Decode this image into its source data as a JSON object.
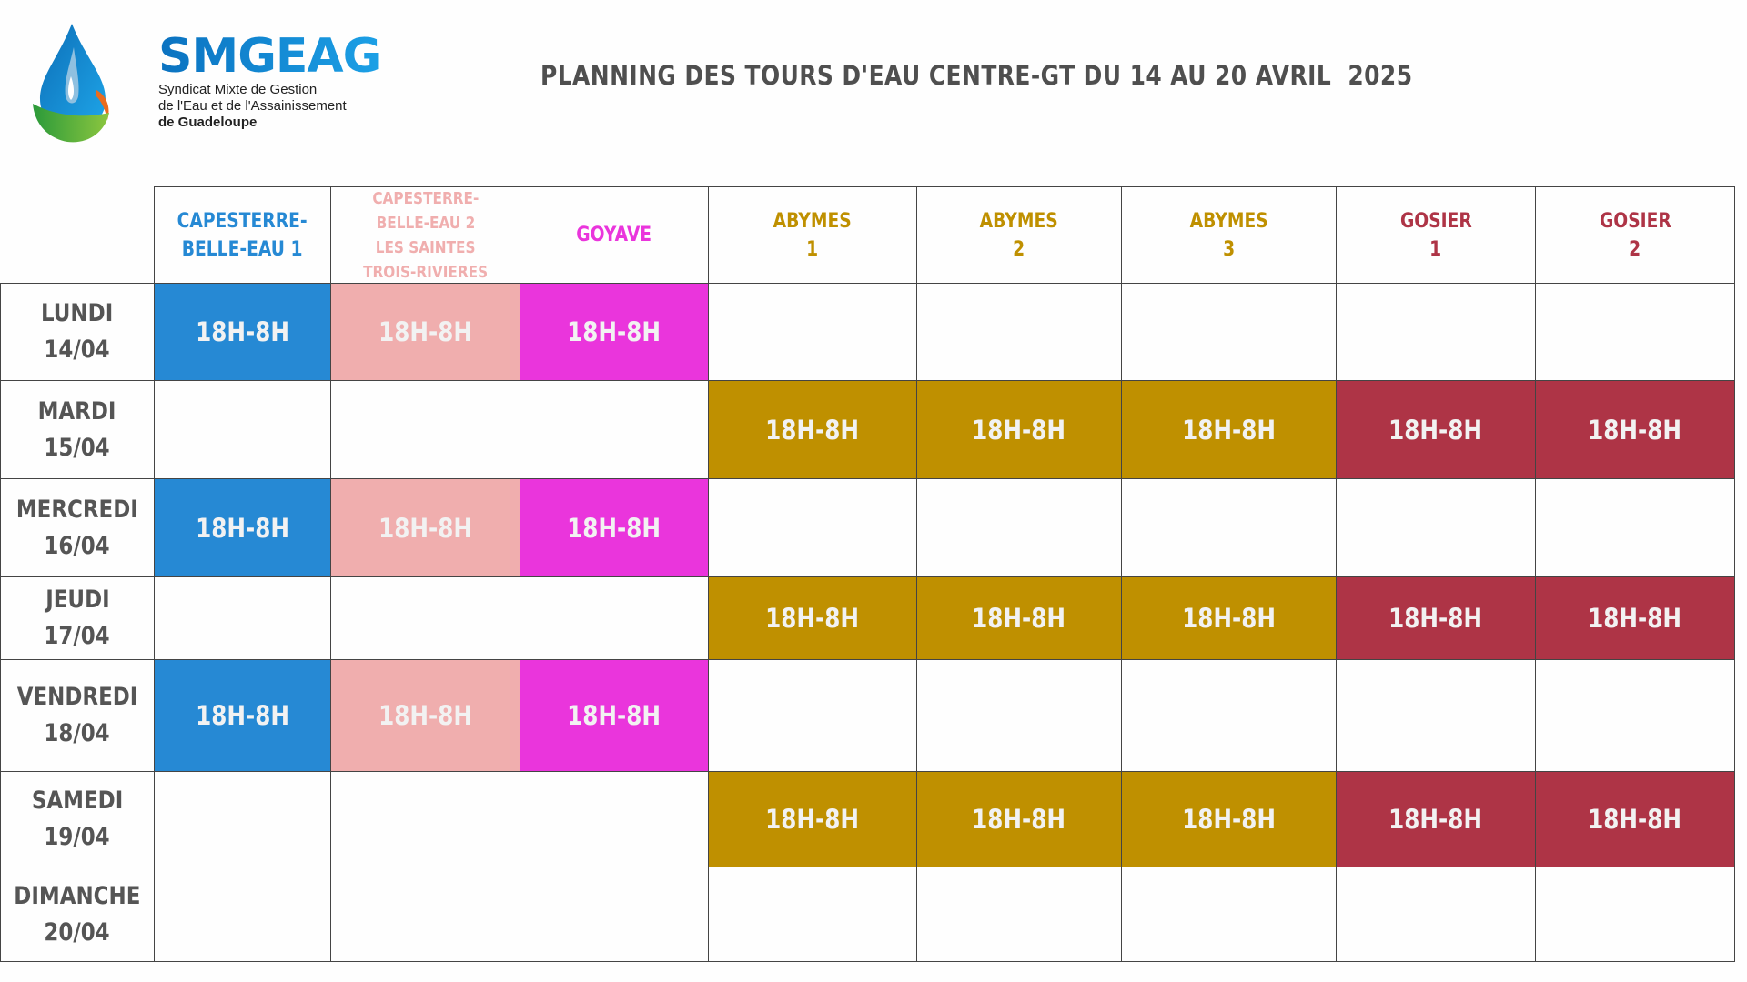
{
  "logo": {
    "brand": "SMGEAG",
    "tagline": [
      "Syndicat Mixte de Gestion",
      "de l'Eau et de l'Assainissement",
      "de Guadeloupe"
    ]
  },
  "title": "PLANNING DES TOURS D'EAU CENTRE-GT DU 14 AU 20 AVRIL  2025",
  "colors": {
    "blue": "#2689d4",
    "pink": "#f0aeae",
    "magenta": "#ea35dc",
    "gold": "#bf9000",
    "crimson": "#ae3446",
    "day_text": "#555555"
  },
  "columns": [
    {
      "lines": [
        "CAPESTERRE-",
        "BELLE-EAU 1"
      ],
      "color": "blue"
    },
    {
      "lines": [
        "CAPESTERRE-",
        "BELLE-EAU 2",
        "LES SAINTES",
        "TROIS-RIVIERES"
      ],
      "color": "pink"
    },
    {
      "lines": [
        "GOYAVE"
      ],
      "color": "magenta"
    },
    {
      "lines": [
        "ABYMES",
        "1"
      ],
      "color": "gold"
    },
    {
      "lines": [
        "ABYMES",
        "2"
      ],
      "color": "gold"
    },
    {
      "lines": [
        "ABYMES",
        "3"
      ],
      "color": "gold"
    },
    {
      "lines": [
        "GOSIER",
        "1"
      ],
      "color": "crimson"
    },
    {
      "lines": [
        "GOSIER",
        "2"
      ],
      "color": "crimson"
    }
  ],
  "rows": [
    {
      "day": "LUNDI",
      "date": "14/04",
      "cells": [
        "18H-8H",
        "18H-8H",
        "18H-8H",
        "",
        "",
        "",
        "",
        ""
      ]
    },
    {
      "day": "MARDI",
      "date": "15/04",
      "cells": [
        "",
        "",
        "",
        "18H-8H",
        "18H-8H",
        "18H-8H",
        "18H-8H",
        "18H-8H"
      ]
    },
    {
      "day": "MERCREDI",
      "date": "16/04",
      "cells": [
        "18H-8H",
        "18H-8H",
        "18H-8H",
        "",
        "",
        "",
        "",
        ""
      ]
    },
    {
      "day": "JEUDI",
      "date": "17/04",
      "cells": [
        "",
        "",
        "",
        "18H-8H",
        "18H-8H",
        "18H-8H",
        "18H-8H",
        "18H-8H"
      ]
    },
    {
      "day": "VENDREDI",
      "date": "18/04",
      "cells": [
        "18H-8H",
        "18H-8H",
        "18H-8H",
        "",
        "",
        "",
        "",
        ""
      ]
    },
    {
      "day": "SAMEDI",
      "date": "19/04",
      "cells": [
        "",
        "",
        "",
        "18H-8H",
        "18H-8H",
        "18H-8H",
        "18H-8H",
        "18H-8H"
      ]
    },
    {
      "day": "DIMANCHE",
      "date": "20/04",
      "cells": [
        "",
        "",
        "",
        "",
        "",
        "",
        "",
        ""
      ]
    }
  ]
}
